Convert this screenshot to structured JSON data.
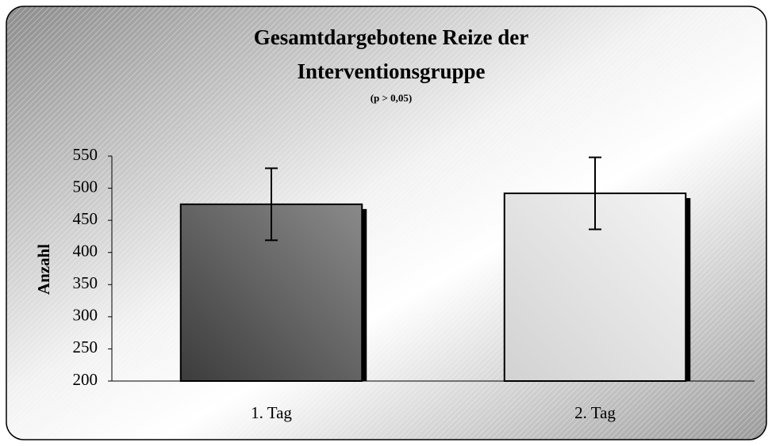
{
  "chart_data": {
    "type": "bar",
    "title": [
      "Gesamtdargebotene Reize der",
      "Interventionsgruppe"
    ],
    "subtitle": "(p > 0,05)",
    "y_label": "Anzahl",
    "categories": [
      "1. Tag",
      "2. Tag"
    ],
    "values": [
      475,
      492
    ],
    "errors": [
      56,
      56
    ],
    "colors": [
      [
        "#3c3c3c",
        "#8a8a8a"
      ],
      [
        "#d2d2d2",
        "#f4f4f4"
      ]
    ],
    "ylim": [
      200,
      550
    ],
    "yticks": [
      200,
      250,
      300,
      350,
      400,
      450,
      500,
      550
    ],
    "grid": false
  }
}
